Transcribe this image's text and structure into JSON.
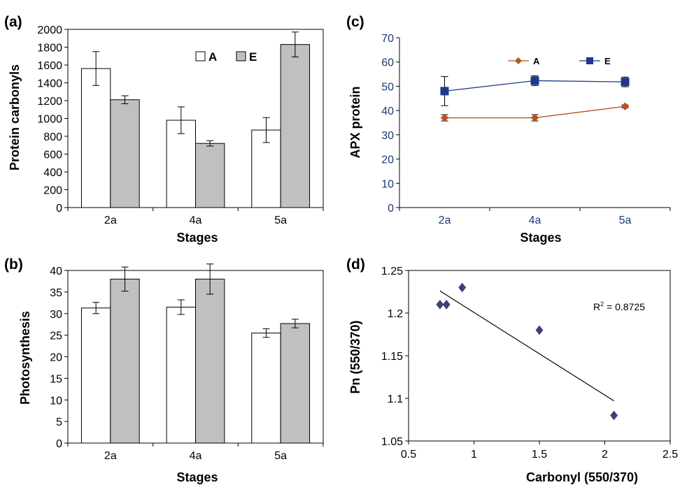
{
  "figure": {
    "panels": [
      "(a)",
      "(b)",
      "(c)",
      "(d)"
    ]
  },
  "colors": {
    "bar_A": "#ffffff",
    "bar_E": "#c0c0c0",
    "line_A": "#b5541e",
    "line_E": "#1f3a8c",
    "marker_A": "#b5541e",
    "marker_E": "#1f3a8c",
    "scatter": "#3c3f78",
    "axis_c_text": "#1f3a6e"
  },
  "chart_data": [
    {
      "id": "a",
      "type": "bar",
      "title": "",
      "xlabel": "Stages",
      "ylabel": "Protein carbonyls",
      "categories": [
        "2a",
        "4a",
        "5a"
      ],
      "ylim": [
        0,
        2000
      ],
      "ytick_labels": [
        "0",
        "200",
        "400",
        "600",
        "800",
        "1000",
        "1200",
        "1400",
        "1600",
        "1800",
        "2000"
      ],
      "grid": false,
      "legend": "top-center",
      "series": [
        {
          "name": "A",
          "values": [
            1560,
            980,
            870
          ],
          "errors": [
            190,
            150,
            140
          ]
        },
        {
          "name": "E",
          "values": [
            1210,
            720,
            1830
          ],
          "errors": [
            45,
            30,
            140
          ]
        }
      ]
    },
    {
      "id": "b",
      "type": "bar",
      "title": "",
      "xlabel": "Stages",
      "ylabel": "Photosynthesis",
      "categories": [
        "2a",
        "4a",
        "5a"
      ],
      "ylim": [
        0,
        40
      ],
      "ytick_labels": [
        "0",
        "5",
        "10",
        "15",
        "20",
        "25",
        "30",
        "35",
        "40"
      ],
      "grid": false,
      "series": [
        {
          "name": "A",
          "values": [
            31.3,
            31.5,
            25.5
          ],
          "errors": [
            1.3,
            1.7,
            1.0
          ]
        },
        {
          "name": "E",
          "values": [
            38.0,
            38.0,
            27.7
          ],
          "errors": [
            2.8,
            3.5,
            1.0
          ]
        }
      ]
    },
    {
      "id": "c",
      "type": "line",
      "title": "",
      "xlabel": "Stages",
      "ylabel": "APX protein",
      "categories": [
        "2a",
        "4a",
        "5a"
      ],
      "ylim": [
        0,
        70
      ],
      "ytick_labels": [
        "0",
        "10",
        "20",
        "30",
        "40",
        "50",
        "60",
        "70"
      ],
      "grid": false,
      "legend": "top-center",
      "series": [
        {
          "name": "A",
          "values": [
            37,
            37,
            41.7
          ],
          "errors": [
            1.3,
            1.3,
            0.6
          ]
        },
        {
          "name": "E",
          "values": [
            48,
            52.3,
            51.8
          ],
          "errors": [
            6,
            2,
            2
          ]
        }
      ]
    },
    {
      "id": "d",
      "type": "scatter",
      "title": "",
      "xlabel": "Carbonyl (550/370)",
      "ylabel": "Pn (550/370)",
      "xlim": [
        0.5,
        2.5
      ],
      "ylim": [
        1.05,
        1.25
      ],
      "xtick_labels": [
        "0.5",
        "1",
        "1.5",
        "2",
        "2.5"
      ],
      "ytick_labels": [
        "1.05",
        "1.1",
        "1.15",
        "1.2",
        "1.25"
      ],
      "grid": false,
      "points": [
        {
          "x": 0.74,
          "y": 1.21
        },
        {
          "x": 0.79,
          "y": 1.21
        },
        {
          "x": 0.91,
          "y": 1.23
        },
        {
          "x": 1.5,
          "y": 1.18
        },
        {
          "x": 2.07,
          "y": 1.08
        }
      ],
      "trendline": {
        "x": [
          0.74,
          2.07
        ],
        "y": [
          1.226,
          1.097
        ]
      },
      "annotation": {
        "r2_label": "R",
        "r2_superscript": "2",
        "r2_value": " = 0.8725"
      }
    }
  ]
}
